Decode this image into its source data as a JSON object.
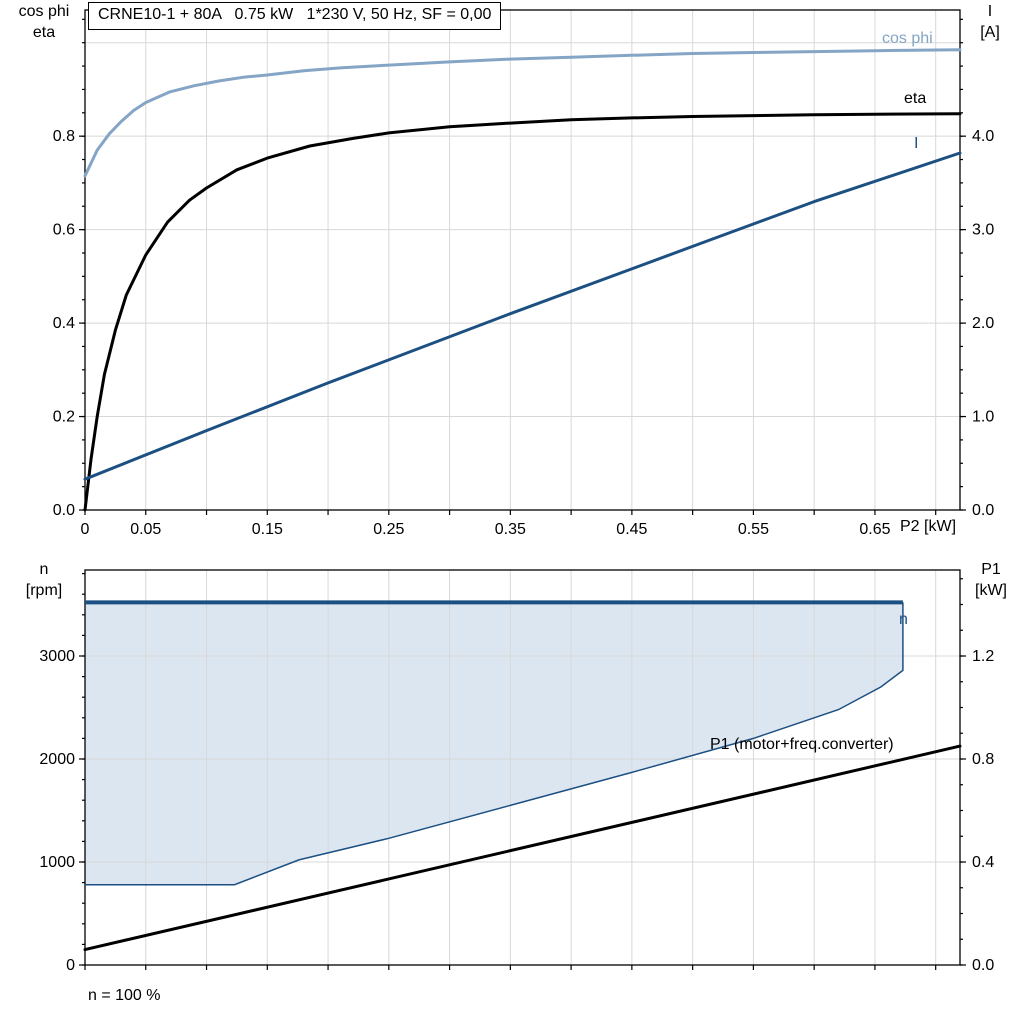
{
  "colors": {
    "cos_phi": "#85a5c6",
    "eta": "#000000",
    "current": "#1c4f82",
    "band_line": "#1c4f82",
    "band_fill": "#dce6f1",
    "p1": "#000000",
    "grid": "#d8d8d8",
    "axis": "#000000"
  },
  "chart_data": [
    {
      "type": "line",
      "title": "CRNE10-1 + 80A   0.75 kW   1*230 V, 50 Hz, SF = 0,00",
      "left_axis_title": [
        "cos phi",
        "eta"
      ],
      "right_axis_title": [
        "I",
        "[A]"
      ],
      "x_axis_title": "P2 [kW]",
      "xlim": [
        0,
        0.72
      ],
      "ylim_left": [
        0,
        1.07
      ],
      "ylim_right": [
        0,
        5.35
      ],
      "x_grid_step": 0.05,
      "y_minor_left": 0.05,
      "y_minor_right": 0.25,
      "x_ticks": [
        {
          "v": 0,
          "label": "0"
        },
        {
          "v": 0.05,
          "label": "0.05"
        },
        {
          "v": 0.15,
          "label": "0.15"
        },
        {
          "v": 0.25,
          "label": "0.25"
        },
        {
          "v": 0.35,
          "label": "0.35"
        },
        {
          "v": 0.45,
          "label": "0.45"
        },
        {
          "v": 0.55,
          "label": "0.55"
        },
        {
          "v": 0.65,
          "label": "0.65"
        }
      ],
      "y_ticks_left": [
        {
          "v": 0,
          "label": "0.0"
        },
        {
          "v": 0.2,
          "label": "0.2"
        },
        {
          "v": 0.4,
          "label": "0.4"
        },
        {
          "v": 0.6,
          "label": "0.6"
        },
        {
          "v": 0.8,
          "label": "0.8"
        }
      ],
      "y_ticks_right": [
        {
          "v": 0,
          "label": "0.0"
        },
        {
          "v": 1.0,
          "label": "1.0"
        },
        {
          "v": 2.0,
          "label": "2.0"
        },
        {
          "v": 3.0,
          "label": "3.0"
        },
        {
          "v": 4.0,
          "label": "4.0"
        }
      ],
      "y_grid_left": [
        0.2,
        0.4,
        0.6,
        0.8,
        1.0
      ],
      "series": [
        {
          "name": "cos phi",
          "axis": "left",
          "color_key": "cos_phi",
          "width": 3,
          "x": [
            0,
            0.01,
            0.02,
            0.03,
            0.04,
            0.05,
            0.07,
            0.09,
            0.11,
            0.13,
            0.15,
            0.18,
            0.21,
            0.25,
            0.3,
            0.35,
            0.4,
            0.45,
            0.5,
            0.55,
            0.6,
            0.65,
            0.72
          ],
          "y": [
            0.715,
            0.77,
            0.805,
            0.832,
            0.855,
            0.872,
            0.895,
            0.908,
            0.918,
            0.926,
            0.931,
            0.94,
            0.946,
            0.952,
            0.959,
            0.965,
            0.969,
            0.973,
            0.977,
            0.979,
            0.981,
            0.983,
            0.985
          ]
        },
        {
          "name": "eta",
          "axis": "left",
          "color_key": "eta",
          "width": 3,
          "x": [
            0,
            0.005,
            0.01,
            0.016,
            0.025,
            0.034,
            0.05,
            0.068,
            0.086,
            0.1,
            0.125,
            0.15,
            0.185,
            0.22,
            0.25,
            0.3,
            0.35,
            0.4,
            0.45,
            0.5,
            0.55,
            0.6,
            0.65,
            0.72
          ],
          "y": [
            0,
            0.11,
            0.2,
            0.29,
            0.385,
            0.46,
            0.546,
            0.616,
            0.663,
            0.689,
            0.728,
            0.753,
            0.779,
            0.795,
            0.807,
            0.82,
            0.828,
            0.835,
            0.839,
            0.842,
            0.844,
            0.846,
            0.847,
            0.848
          ]
        },
        {
          "name": "I",
          "axis": "right",
          "color_key": "current",
          "width": 3,
          "x": [
            0,
            0.1,
            0.2,
            0.35,
            0.5,
            0.6,
            0.72
          ],
          "y": [
            0.33,
            0.85,
            1.36,
            2.1,
            2.82,
            3.3,
            3.82
          ]
        }
      ]
    },
    {
      "type": "line",
      "left_axis_title": [
        "n",
        "[rpm]"
      ],
      "right_axis_title": [
        "P1",
        "[kW]"
      ],
      "footnote": "n = 100 %",
      "xlim": [
        0,
        0.72
      ],
      "ylim_left": [
        0,
        3835
      ],
      "ylim_right": [
        0,
        1.534
      ],
      "x_grid_step": 0.05,
      "y_minor_left": 200,
      "y_minor_right": 0.1,
      "x_ticks": [],
      "y_ticks_left": [
        {
          "v": 0,
          "label": "0"
        },
        {
          "v": 1000,
          "label": "1000"
        },
        {
          "v": 2000,
          "label": "2000"
        },
        {
          "v": 3000,
          "label": "3000"
        }
      ],
      "y_ticks_right": [
        {
          "v": 0,
          "label": "0.0"
        },
        {
          "v": 0.4,
          "label": "0.4"
        },
        {
          "v": 0.8,
          "label": "0.8"
        },
        {
          "v": 1.2,
          "label": "1.2"
        }
      ],
      "y_grid_left": [
        1000,
        2000,
        3000
      ],
      "band": {
        "name": "n",
        "label": "n",
        "axis": "left",
        "line_color_key": "band_line",
        "fill_color_key": "band_fill",
        "upper": {
          "x": [
            0,
            0.673
          ],
          "y": [
            3520,
            3520
          ]
        },
        "lower": {
          "x": [
            0,
            0.123,
            0.176,
            0.25,
            0.35,
            0.45,
            0.55,
            0.62,
            0.655,
            0.673
          ],
          "y": [
            780,
            780,
            1020,
            1230,
            1550,
            1870,
            2200,
            2480,
            2700,
            2860
          ]
        }
      },
      "series": [
        {
          "name": "P1 (motor+freq.converter)",
          "axis": "right",
          "color_key": "p1",
          "width": 3,
          "x": [
            0,
            0.72
          ],
          "y": [
            0.06,
            0.85
          ]
        }
      ]
    }
  ]
}
